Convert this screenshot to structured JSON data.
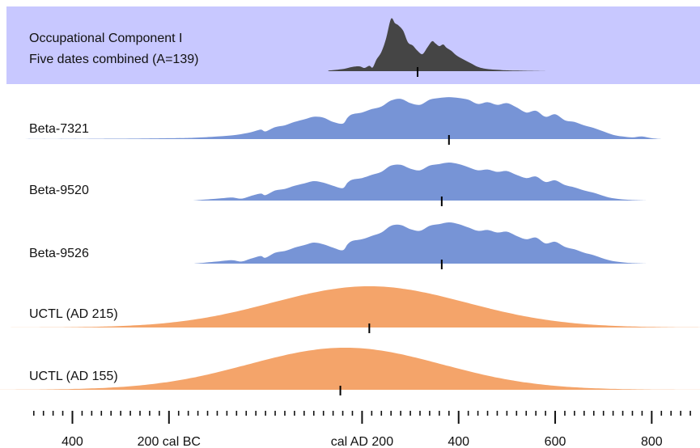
{
  "chart_data": {
    "type": "area",
    "xlim": [
      -550,
      900
    ],
    "axis_ticks": [
      {
        "value": -400,
        "label": "400"
      },
      {
        "value": -200,
        "label": "200 cal BC"
      },
      {
        "value": 200,
        "label": "cal AD 200"
      },
      {
        "value": 400,
        "label": "400"
      },
      {
        "value": 600,
        "label": "600"
      },
      {
        "value": 800,
        "label": "800"
      }
    ],
    "minor_tick_step": 20,
    "combined": {
      "label_lines": [
        "Occupational Component I",
        "Five dates combined (A=139)"
      ],
      "color": "#454545",
      "background": "#c8c8ff",
      "median": 315,
      "x": [
        130,
        160,
        180,
        195,
        205,
        215,
        222,
        230,
        240,
        250,
        260,
        268,
        275,
        285,
        295,
        305,
        315,
        325,
        335,
        345,
        352,
        360,
        368,
        375,
        385,
        395,
        410,
        425,
        440,
        460,
        490,
        520,
        580
      ],
      "density": [
        0.01,
        0.04,
        0.08,
        0.09,
        0.06,
        0.1,
        0.07,
        0.22,
        0.36,
        0.62,
        0.98,
        0.9,
        0.86,
        0.76,
        0.54,
        0.48,
        0.38,
        0.32,
        0.44,
        0.56,
        0.52,
        0.47,
        0.5,
        0.44,
        0.38,
        0.3,
        0.22,
        0.15,
        0.08,
        0.04,
        0.02,
        0.01,
        0.0
      ]
    },
    "dates": [
      {
        "label": "Beta-7321",
        "color": "#7794d6",
        "median": 380,
        "x": [
          -550,
          -300,
          -200,
          -150,
          -100,
          -60,
          -30,
          -10,
          0,
          20,
          40,
          60,
          80,
          100,
          120,
          140,
          160,
          170,
          180,
          200,
          220,
          240,
          260,
          280,
          300,
          320,
          340,
          360,
          380,
          400,
          420,
          440,
          460,
          480,
          500,
          520,
          540,
          560,
          580,
          600,
          620,
          640,
          660,
          680,
          700,
          720,
          740,
          760,
          780,
          800,
          820
        ],
        "density": [
          0.0,
          0.01,
          0.02,
          0.03,
          0.06,
          0.1,
          0.16,
          0.22,
          0.18,
          0.28,
          0.32,
          0.4,
          0.46,
          0.52,
          0.5,
          0.4,
          0.36,
          0.5,
          0.58,
          0.62,
          0.7,
          0.76,
          0.9,
          0.94,
          0.84,
          0.8,
          0.92,
          0.96,
          0.98,
          0.96,
          0.92,
          0.82,
          0.86,
          0.8,
          0.84,
          0.74,
          0.62,
          0.66,
          0.52,
          0.58,
          0.44,
          0.4,
          0.32,
          0.26,
          0.18,
          0.1,
          0.06,
          0.04,
          0.06,
          0.02,
          0.0
        ]
      },
      {
        "label": "Beta-9520",
        "color": "#7794d6",
        "median": 365,
        "x": [
          -150,
          -100,
          -70,
          -50,
          -30,
          -10,
          0,
          20,
          40,
          60,
          80,
          100,
          120,
          140,
          160,
          170,
          180,
          200,
          220,
          240,
          260,
          280,
          300,
          320,
          340,
          360,
          380,
          400,
          420,
          440,
          460,
          480,
          500,
          520,
          540,
          560,
          580,
          600,
          620,
          640,
          660,
          680,
          700,
          720,
          750,
          790
        ],
        "density": [
          0.0,
          0.05,
          0.08,
          0.05,
          0.12,
          0.18,
          0.14,
          0.26,
          0.3,
          0.38,
          0.44,
          0.5,
          0.46,
          0.38,
          0.32,
          0.46,
          0.54,
          0.58,
          0.66,
          0.74,
          0.9,
          0.92,
          0.82,
          0.78,
          0.9,
          0.94,
          0.98,
          0.94,
          0.86,
          0.78,
          0.8,
          0.74,
          0.76,
          0.66,
          0.58,
          0.62,
          0.48,
          0.52,
          0.4,
          0.34,
          0.26,
          0.2,
          0.12,
          0.06,
          0.02,
          0.0
        ]
      },
      {
        "label": "Beta-9526",
        "color": "#7794d6",
        "median": 365,
        "x": [
          -150,
          -100,
          -70,
          -50,
          -30,
          -10,
          0,
          20,
          40,
          60,
          80,
          100,
          120,
          140,
          160,
          170,
          180,
          200,
          220,
          240,
          260,
          280,
          300,
          320,
          340,
          360,
          380,
          400,
          420,
          440,
          460,
          480,
          500,
          520,
          540,
          560,
          580,
          600,
          620,
          640,
          660,
          680,
          700,
          720,
          750,
          790
        ],
        "density": [
          0.0,
          0.05,
          0.08,
          0.05,
          0.12,
          0.18,
          0.14,
          0.26,
          0.3,
          0.38,
          0.44,
          0.5,
          0.46,
          0.38,
          0.32,
          0.46,
          0.54,
          0.58,
          0.66,
          0.74,
          0.9,
          0.92,
          0.82,
          0.78,
          0.9,
          0.94,
          0.98,
          0.94,
          0.86,
          0.78,
          0.8,
          0.74,
          0.76,
          0.66,
          0.58,
          0.62,
          0.48,
          0.52,
          0.4,
          0.34,
          0.26,
          0.2,
          0.12,
          0.06,
          0.02,
          0.0
        ]
      },
      {
        "label": "UCTL (AD 215)",
        "color": "#f4a46a",
        "median": 215,
        "mean": 215,
        "sd": 200
      },
      {
        "label": "UCTL (AD 155)",
        "color": "#f4a46a",
        "median": 155,
        "mean": 165,
        "sd": 200
      }
    ]
  }
}
